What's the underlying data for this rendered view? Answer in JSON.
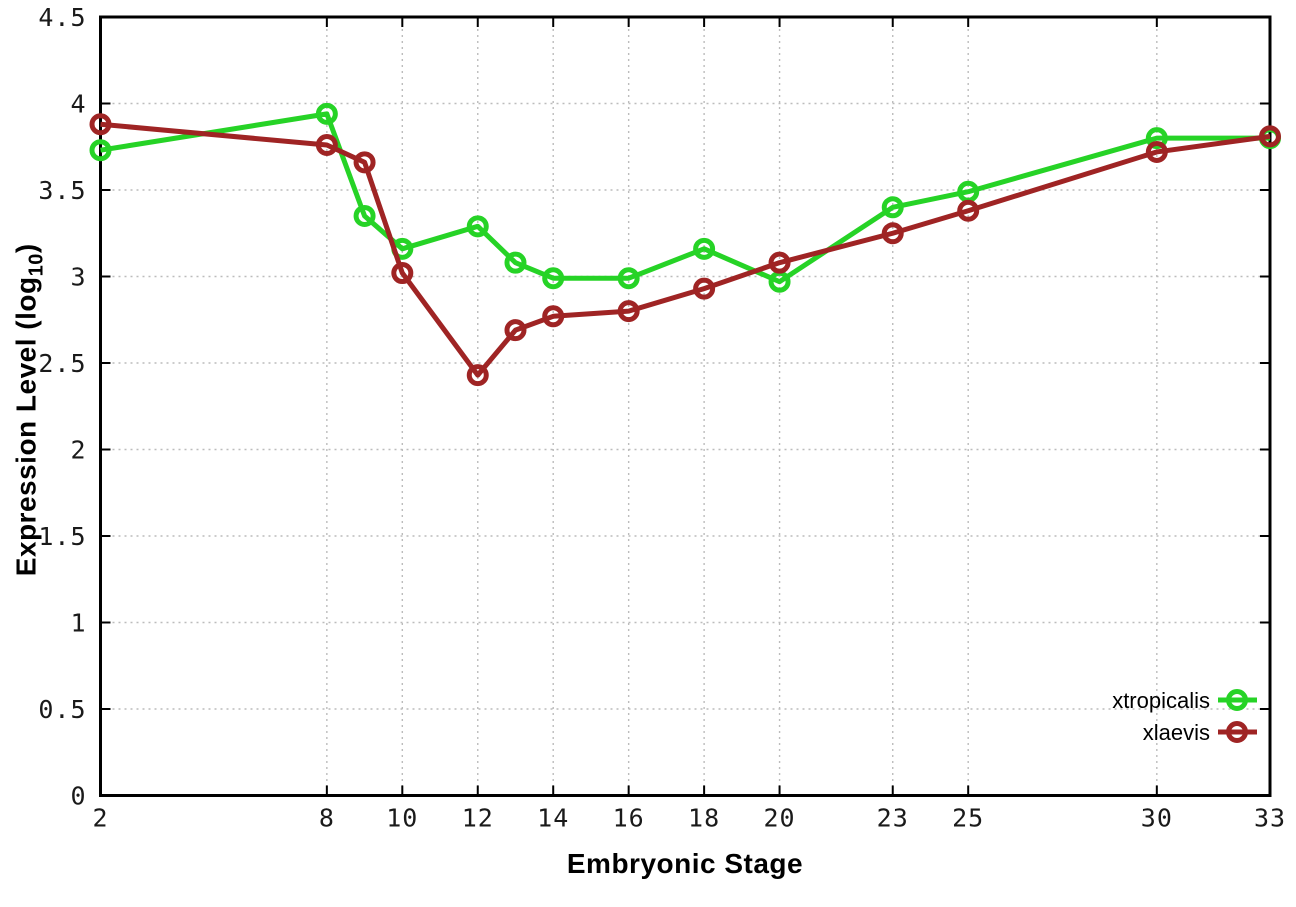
{
  "figure": {
    "background": "#ffffff",
    "border_color": "#000000",
    "grid_color": "#bcbcbc",
    "x_axis_title": "Embryonic Stage",
    "y_axis_title_main": "Expression Level (log",
    "y_axis_title_sub": "10",
    "y_axis_title_close": ")"
  },
  "chart_data": {
    "type": "line",
    "title": "",
    "xlabel": "Embryonic Stage",
    "ylabel": "Expression Level (log10)",
    "xlim": [
      2,
      33
    ],
    "ylim": [
      0,
      4.5
    ],
    "grid": true,
    "grid_style": "dotted",
    "legend_position": "bottom-right",
    "x": [
      2,
      8,
      9,
      10,
      12,
      13,
      14,
      16,
      18,
      20,
      23,
      25,
      30,
      33
    ],
    "x_tick_labels": [
      "2",
      "8",
      "10",
      "12",
      "14",
      "16",
      "18",
      "20",
      "23",
      "25",
      "30",
      "33"
    ],
    "x_tick_values": [
      2,
      8,
      10,
      12,
      14,
      16,
      18,
      20,
      23,
      25,
      30,
      33
    ],
    "y_tick_labels": [
      "0",
      "0.5",
      "1",
      "1.5",
      "2",
      "2.5",
      "3",
      "3.5",
      "4",
      "4.5"
    ],
    "y_tick_values": [
      0,
      0.5,
      1,
      1.5,
      2,
      2.5,
      3,
      3.5,
      4,
      4.5
    ],
    "series": [
      {
        "name": "xtropicalis",
        "color": "#26d326",
        "marker": "open-circle",
        "values": [
          3.73,
          3.94,
          3.35,
          3.16,
          3.29,
          3.08,
          2.99,
          2.99,
          3.16,
          2.97,
          3.4,
          3.49,
          3.8,
          3.8
        ]
      },
      {
        "name": "xlaevis",
        "color": "#9f2424",
        "marker": "open-circle",
        "values": [
          3.88,
          3.76,
          3.66,
          3.02,
          2.43,
          2.69,
          2.77,
          2.8,
          2.93,
          3.08,
          3.25,
          3.38,
          3.72,
          3.81
        ]
      }
    ]
  }
}
